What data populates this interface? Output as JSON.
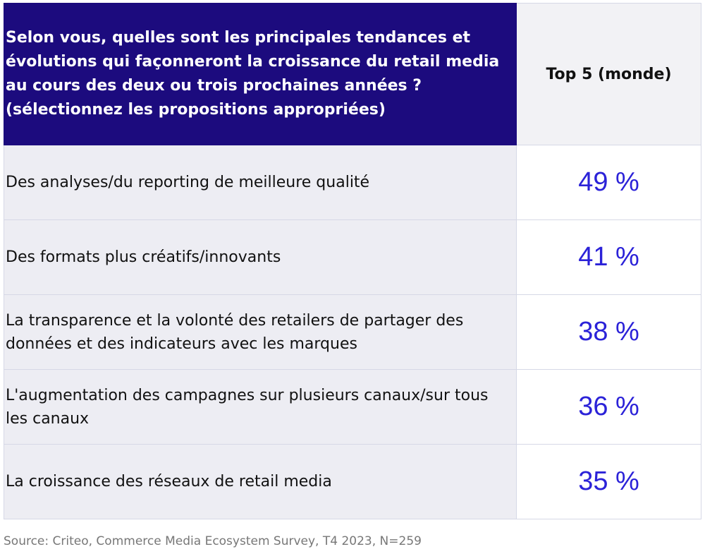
{
  "table": {
    "question": "Selon vous, quelles sont les principales tendances et évolutions qui façonneront la croissance du retail media au cours des deux ou trois prochaines années ? (sélectionnez les propositions appropriées)",
    "column_header": "Top 5 (monde)",
    "rows": [
      {
        "label": "Des analyses/du reporting de meilleure qualité",
        "value": "49 %"
      },
      {
        "label": "Des formats plus créatifs/innovants",
        "value": "41 %"
      },
      {
        "label": "La transparence et la volonté des retailers de partager des données et des indicateurs avec les marques",
        "value": "38 %"
      },
      {
        "label": "L'augmentation des campagnes sur plusieurs canaux/sur tous les canaux",
        "value": "36 %"
      },
      {
        "label": "La croissance des réseaux de retail media",
        "value": "35 %"
      }
    ]
  },
  "footer": {
    "source": "Source: Criteo, Commerce Media Ecosystem Survey, T4 2023, N=259"
  },
  "colors": {
    "header_bg": "#1c0b7e",
    "value_text": "#2b22d8",
    "row_bg": "#ededf3"
  }
}
